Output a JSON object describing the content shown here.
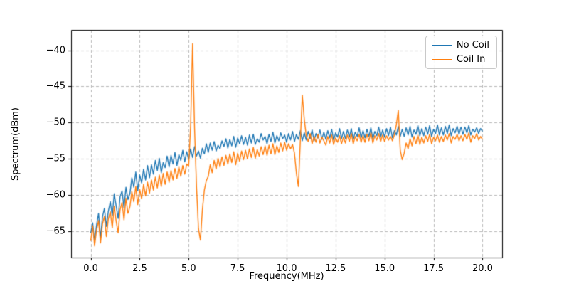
{
  "figure": {
    "background": "#ffffff"
  },
  "chart_data": {
    "type": "line",
    "title": "",
    "xlabel": "Frequency(MHz)",
    "ylabel": "Spectrum(dBm)",
    "xlim": [
      -1,
      21
    ],
    "ylim": [
      -68.6,
      -37.2
    ],
    "grid": {
      "on": true,
      "style": "dashed",
      "color": "#b8b8b8"
    },
    "x_ticks": {
      "values": [
        0,
        2.5,
        5,
        7.5,
        10,
        12.5,
        15,
        17.5,
        20
      ],
      "labels": [
        "0.0",
        "2.5",
        "5.0",
        "7.5",
        "10.0",
        "12.5",
        "15.0",
        "17.5",
        "20.0"
      ]
    },
    "y_ticks": {
      "values": [
        -65,
        -60,
        -55,
        -50,
        -45,
        -40
      ],
      "labels": [
        "−65",
        "−60",
        "−55",
        "−50",
        "−45",
        "−40"
      ]
    },
    "legend": {
      "position": "upper right",
      "entries": [
        "No Coil",
        "Coil In"
      ]
    },
    "series": [
      {
        "name": "No Coil",
        "color": "#1f77b4",
        "x0": 0,
        "dx": 0.1,
        "values": [
          -65.2,
          -63.8,
          -66.4,
          -64.1,
          -62.5,
          -65.9,
          -63.0,
          -61.8,
          -64.3,
          -62.2,
          -60.9,
          -62.8,
          -59.8,
          -61.5,
          -63.2,
          -60.2,
          -59.4,
          -61.7,
          -58.9,
          -60.6,
          -59.8,
          -57.6,
          -58.9,
          -56.8,
          -59.4,
          -57.2,
          -58.3,
          -56.4,
          -57.9,
          -55.9,
          -57.6,
          -55.8,
          -57.1,
          -55.2,
          -56.6,
          -54.9,
          -56.9,
          -55.5,
          -56.2,
          -54.6,
          -56.1,
          -54.5,
          -55.7,
          -54.1,
          -55.9,
          -54.4,
          -55.2,
          -53.8,
          -55.4,
          -54.0,
          -55.1,
          -53.6,
          -54.8,
          -53.3,
          -54.6,
          -53.9,
          -54.9,
          -53.5,
          -54.3,
          -52.9,
          -54.1,
          -52.8,
          -53.8,
          -52.6,
          -53.9,
          -53.1,
          -53.6,
          -52.5,
          -53.3,
          -52.2,
          -53.5,
          -52.3,
          -53.2,
          -51.9,
          -53.4,
          -52.1,
          -52.9,
          -51.8,
          -53.0,
          -52.0,
          -53.1,
          -51.7,
          -52.8,
          -51.6,
          -53.0,
          -52.2,
          -52.7,
          -51.5,
          -52.4,
          -51.9,
          -52.9,
          -51.6,
          -52.6,
          -51.3,
          -52.8,
          -51.8,
          -52.5,
          -51.4,
          -52.2,
          -51.7,
          -52.7,
          -51.5,
          -52.4,
          -51.2,
          -52.6,
          -51.6,
          -52.3,
          -51.1,
          -52.5,
          -51.4,
          -52.4,
          -51.2,
          -52.2,
          -51.0,
          -52.5,
          -51.5,
          -52.1,
          -51.0,
          -52.3,
          -51.3,
          -52.3,
          -51.1,
          -52.1,
          -50.9,
          -52.4,
          -51.4,
          -52.0,
          -50.8,
          -52.2,
          -51.2,
          -52.2,
          -51.0,
          -52.0,
          -50.8,
          -52.3,
          -51.3,
          -51.9,
          -50.7,
          -52.1,
          -51.1,
          -52.1,
          -50.9,
          -51.9,
          -50.7,
          -52.2,
          -51.2,
          -51.8,
          -50.6,
          -52.0,
          -51.0,
          -52.0,
          -50.8,
          -51.8,
          -50.6,
          -52.1,
          -51.1,
          -51.7,
          -50.5,
          -51.9,
          -50.9,
          -51.9,
          -50.7,
          -51.7,
          -50.5,
          -52.0,
          -51.0,
          -51.6,
          -50.4,
          -51.8,
          -50.8,
          -51.8,
          -50.6,
          -51.6,
          -50.4,
          -51.9,
          -50.9,
          -51.5,
          -50.3,
          -51.7,
          -50.7,
          -51.7,
          -50.5,
          -51.5,
          -50.3,
          -51.8,
          -50.8,
          -51.4,
          -50.5,
          -51.6,
          -50.6,
          -51.6,
          -50.6,
          -51.4,
          -50.4,
          -51.7,
          -50.9,
          -51.3,
          -50.7,
          -51.5,
          -50.8,
          -51.2
        ]
      },
      {
        "name": "Coil In",
        "color": "#ff7f0e",
        "x0": 0,
        "dx": 0.1,
        "values": [
          -66.3,
          -64.2,
          -67.0,
          -64.8,
          -63.5,
          -66.6,
          -64.0,
          -62.9,
          -65.7,
          -63.3,
          -62.3,
          -64.5,
          -61.5,
          -63.6,
          -65.2,
          -62.0,
          -61.0,
          -63.4,
          -60.4,
          -62.5,
          -61.6,
          -59.5,
          -60.9,
          -58.8,
          -61.3,
          -59.2,
          -60.5,
          -58.5,
          -60.1,
          -58.2,
          -59.7,
          -57.9,
          -59.3,
          -57.5,
          -59.0,
          -57.2,
          -58.8,
          -57.0,
          -58.5,
          -56.8,
          -58.2,
          -56.6,
          -57.9,
          -56.3,
          -57.7,
          -56.1,
          -57.4,
          -55.9,
          -57.1,
          -55.7,
          -56.0,
          -50.4,
          -39.1,
          -50.8,
          -58.8,
          -64.6,
          -66.2,
          -62.0,
          -59.3,
          -58.0,
          -57.4,
          -55.8,
          -56.9,
          -55.2,
          -56.4,
          -54.9,
          -56.1,
          -54.7,
          -55.9,
          -54.5,
          -55.7,
          -54.3,
          -55.5,
          -54.0,
          -55.8,
          -54.2,
          -55.3,
          -53.9,
          -55.1,
          -53.8,
          -55.0,
          -53.6,
          -54.8,
          -53.4,
          -54.9,
          -53.7,
          -54.6,
          -53.3,
          -54.4,
          -53.2,
          -54.5,
          -53.1,
          -54.3,
          -52.9,
          -54.4,
          -53.2,
          -54.1,
          -52.8,
          -53.9,
          -52.7,
          -53.8,
          -52.9,
          -53.6,
          -53.0,
          -54.2,
          -57.0,
          -58.8,
          -52.5,
          -46.2,
          -49.5,
          -51.8,
          -52.6,
          -51.5,
          -52.9,
          -51.9,
          -52.7,
          -51.6,
          -52.8,
          -52.0,
          -52.5,
          -53.1,
          -51.9,
          -52.8,
          -51.7,
          -53.0,
          -52.1,
          -52.7,
          -51.8,
          -52.9,
          -52.0,
          -52.8,
          -51.7,
          -52.6,
          -51.5,
          -52.9,
          -51.9,
          -52.5,
          -51.6,
          -52.7,
          -51.8,
          -52.7,
          -51.6,
          -52.5,
          -51.4,
          -52.8,
          -51.8,
          -52.4,
          -51.5,
          -52.6,
          -51.7,
          -52.6,
          -51.8,
          -52.4,
          -51.9,
          -52.5,
          -51.7,
          -50.3,
          -48.3,
          -53.8,
          -55.1,
          -54.2,
          -52.8,
          -53.6,
          -52.2,
          -53.2,
          -51.9,
          -52.9,
          -51.7,
          -53.0,
          -52.0,
          -52.8,
          -51.8,
          -52.6,
          -51.6,
          -52.9,
          -52.0,
          -52.5,
          -51.7,
          -52.7,
          -51.9,
          -52.6,
          -51.7,
          -52.4,
          -51.5,
          -52.8,
          -51.9,
          -52.3,
          -51.6,
          -52.5,
          -51.8,
          -52.5,
          -51.6,
          -52.3,
          -51.4,
          -52.7,
          -51.8,
          -52.2,
          -51.5,
          -52.4,
          -51.9,
          -52.3
        ]
      }
    ]
  }
}
